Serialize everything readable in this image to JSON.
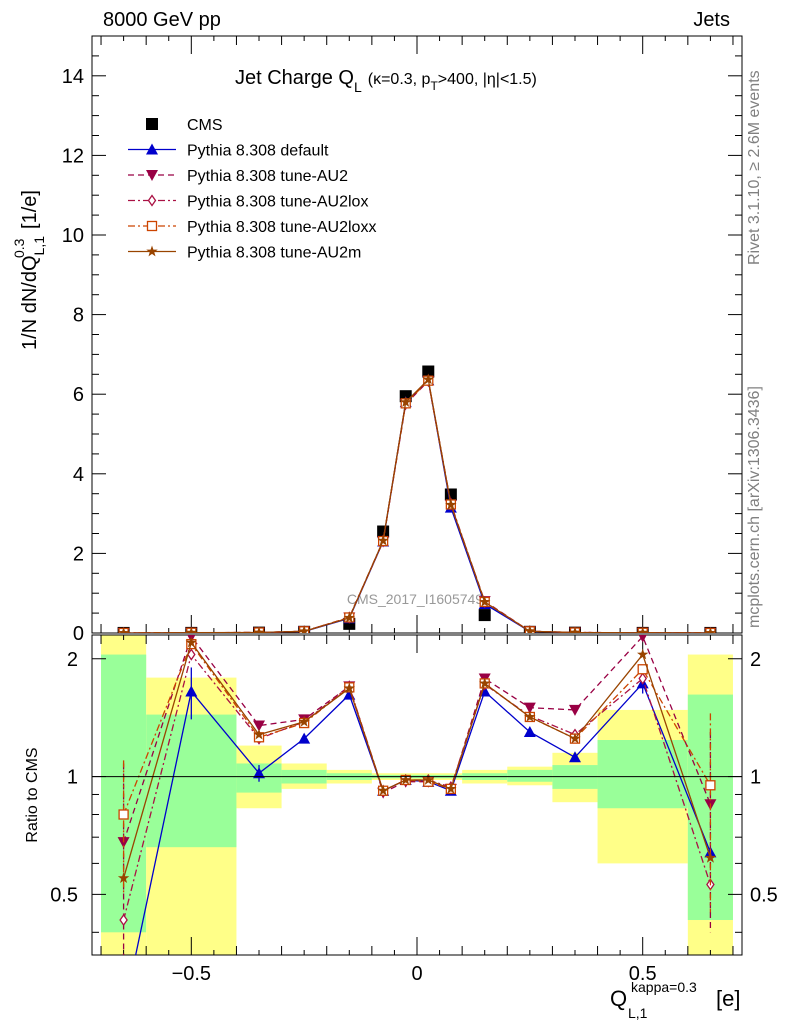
{
  "header": {
    "energy_label": "8000 GeV pp",
    "category_label": "Jets"
  },
  "side_labels": {
    "rivet": "Rivet 3.1.10, ≥ 2.6M events",
    "mcplots": "mcplots.cern.ch [arXiv:1306.3436]"
  },
  "watermark": "CMS_2017_I1605749",
  "chart_data": [
    {
      "type": "line",
      "panel": "main",
      "title": "Jet Charge Q_L (κ=0.3, p_T>400, |η|<1.5)",
      "title_parts": {
        "main": "Jet Charge Q",
        "sub": "L",
        "rest": "(κ=0.3, p",
        "sub2": "T",
        "rest2": ">400, |η|<1.5)"
      },
      "ylabel": "1/N dN/dQ^{0.3}_{L,1} [1/e]",
      "xlabel": "Q^{kappa=0.3}_{L,1} [e]",
      "xlim": [
        -0.72,
        0.72
      ],
      "ylim": [
        0,
        15
      ],
      "yticks": [
        0,
        2,
        4,
        6,
        8,
        10,
        12,
        14
      ],
      "xticks": [
        -0.5,
        0,
        0.5
      ],
      "xtick_labels": [
        "−0.5",
        "0",
        "0.5"
      ],
      "legend_position": "top-left",
      "x": [
        -0.65,
        -0.5,
        -0.35,
        -0.25,
        -0.15,
        -0.075,
        -0.025,
        0.025,
        0.075,
        0.15,
        0.25,
        0.35,
        0.5,
        0.65
      ],
      "series": [
        {
          "name": "CMS",
          "color": "#000000",
          "marker": "square",
          "line": "none",
          "values": [
            0.002,
            0.003,
            0.01,
            0.03,
            0.23,
            2.55,
            5.95,
            6.57,
            3.48,
            0.45,
            0.03,
            0.009,
            0.003,
            0.002
          ]
        },
        {
          "name": "Pythia 8.308 default",
          "color": "#0000cc",
          "marker": "triangle-up",
          "line": "solid",
          "values": [
            0.0005,
            0.005,
            0.01,
            0.038,
            0.37,
            2.3,
            5.8,
            6.35,
            3.15,
            0.73,
            0.038,
            0.01,
            0.005,
            0.0013
          ]
        },
        {
          "name": "Pythia 8.308 tune-AU2",
          "color": "#990044",
          "marker": "triangle-down",
          "line": "dashed",
          "values": [
            0.0014,
            0.007,
            0.013,
            0.043,
            0.39,
            2.3,
            5.75,
            6.33,
            3.22,
            0.8,
            0.045,
            0.013,
            0.0065,
            0.0017
          ]
        },
        {
          "name": "Pythia 8.308 tune-AU2lox",
          "color": "#aa1144",
          "marker": "diamond-open",
          "line": "dashdot",
          "values": [
            0.001,
            0.006,
            0.012,
            0.042,
            0.39,
            2.32,
            5.78,
            6.35,
            3.25,
            0.78,
            0.043,
            0.012,
            0.006,
            0.0011
          ]
        },
        {
          "name": "Pythia 8.308 tune-AU2loxx",
          "color": "#cc4400",
          "marker": "square-open",
          "line": "dashdot",
          "values": [
            0.0016,
            0.0065,
            0.013,
            0.042,
            0.39,
            2.31,
            5.77,
            6.34,
            3.23,
            0.78,
            0.042,
            0.012,
            0.0058,
            0.0019
          ]
        },
        {
          "name": "Pythia 8.308 tune-AU2m",
          "color": "#994400",
          "marker": "star",
          "line": "solid",
          "values": [
            0.0012,
            0.0065,
            0.012,
            0.042,
            0.38,
            2.32,
            5.8,
            6.37,
            3.22,
            0.78,
            0.043,
            0.012,
            0.006,
            0.0013
          ]
        }
      ]
    },
    {
      "type": "line",
      "panel": "ratio",
      "ylabel": "Ratio to CMS",
      "ylim": [
        0.35,
        2.3
      ],
      "ytick_labels": [
        "0.5",
        "1",
        "2"
      ],
      "reference_line": 1,
      "bins": [
        {
          "xlo": -0.7,
          "xhi": -0.6,
          "green": [
            0.4,
            2.05
          ],
          "yellow": [
            0.35,
            2.35
          ]
        },
        {
          "xlo": -0.6,
          "xhi": -0.4,
          "green": [
            0.66,
            1.44
          ],
          "yellow": [
            0.35,
            1.79
          ]
        },
        {
          "xlo": -0.4,
          "xhi": -0.3,
          "green": [
            0.91,
            1.08
          ],
          "yellow": [
            0.83,
            1.2
          ]
        },
        {
          "xlo": -0.3,
          "xhi": -0.2,
          "green": [
            0.96,
            1.04
          ],
          "yellow": [
            0.93,
            1.08
          ]
        },
        {
          "xlo": -0.2,
          "xhi": -0.1,
          "green": [
            0.98,
            1.02
          ],
          "yellow": [
            0.96,
            1.04
          ]
        },
        {
          "xlo": -0.1,
          "xhi": 0.1,
          "green": [
            0.99,
            1.01
          ],
          "yellow": [
            0.98,
            1.02
          ]
        },
        {
          "xlo": 0.1,
          "xhi": 0.2,
          "green": [
            0.98,
            1.02
          ],
          "yellow": [
            0.96,
            1.04
          ]
        },
        {
          "xlo": 0.2,
          "xhi": 0.3,
          "green": [
            0.97,
            1.04
          ],
          "yellow": [
            0.95,
            1.06
          ]
        },
        {
          "xlo": 0.3,
          "xhi": 0.4,
          "green": [
            0.93,
            1.07
          ],
          "yellow": [
            0.86,
            1.15
          ]
        },
        {
          "xlo": 0.4,
          "xhi": 0.6,
          "green": [
            0.83,
            1.24
          ],
          "yellow": [
            0.6,
            1.48
          ]
        },
        {
          "xlo": 0.6,
          "xhi": 0.7,
          "green": [
            0.43,
            1.62
          ],
          "yellow": [
            0.35,
            2.05
          ]
        }
      ],
      "x": [
        -0.65,
        -0.5,
        -0.35,
        -0.25,
        -0.15,
        -0.075,
        -0.025,
        0.025,
        0.075,
        0.15,
        0.25,
        0.35,
        0.5,
        0.65
      ],
      "series": [
        {
          "name": "Pythia 8.308 default",
          "color": "#0000cc",
          "values": [
            0.25,
            1.65,
            1.02,
            1.25,
            1.62,
            0.92,
            0.98,
            0.97,
            0.92,
            1.65,
            1.3,
            1.12,
            1.73,
            0.64
          ],
          "errors": [
            0,
            0.25,
            0.05,
            0.02,
            0.02,
            0.01,
            0.01,
            0.01,
            0.01,
            0.02,
            0.02,
            0.03,
            0.1,
            0
          ]
        },
        {
          "name": "Pythia 8.308 tune-AU2",
          "color": "#990044",
          "values": [
            0.68,
            2.28,
            1.35,
            1.4,
            1.7,
            0.91,
            0.97,
            0.97,
            0.93,
            1.78,
            1.5,
            1.48,
            2.28,
            0.85
          ],
          "errors": [
            0.4,
            0,
            0,
            0,
            0,
            0,
            0,
            0,
            0,
            0,
            0,
            0,
            0,
            0.45
          ]
        },
        {
          "name": "Pythia 8.308 tune-AU2lox",
          "color": "#aa1144",
          "values": [
            0.43,
            2.05,
            1.25,
            1.38,
            1.7,
            0.92,
            0.98,
            0.98,
            0.94,
            1.72,
            1.43,
            1.28,
            1.78,
            0.53
          ],
          "errors": [
            0,
            0,
            0,
            0,
            0,
            0,
            0,
            0,
            0,
            0,
            0,
            0,
            0,
            0
          ]
        },
        {
          "name": "Pythia 8.308 tune-AU2loxx",
          "color": "#cc4400",
          "values": [
            0.8,
            2.18,
            1.26,
            1.37,
            1.69,
            0.92,
            0.98,
            0.97,
            0.93,
            1.73,
            1.42,
            1.25,
            1.88,
            0.95
          ],
          "errors": [
            0.3,
            0,
            0,
            0,
            0,
            0,
            0,
            0,
            0,
            0,
            0,
            0,
            0,
            0.5
          ]
        },
        {
          "name": "Pythia 8.308 tune-AU2m",
          "color": "#994400",
          "values": [
            0.55,
            2.2,
            1.28,
            1.38,
            1.68,
            0.92,
            0.98,
            0.98,
            0.93,
            1.73,
            1.42,
            1.25,
            2.05,
            0.62
          ],
          "errors": [
            0,
            0,
            0,
            0,
            0,
            0,
            0,
            0,
            0,
            0,
            0,
            0,
            0,
            0
          ]
        }
      ]
    }
  ]
}
